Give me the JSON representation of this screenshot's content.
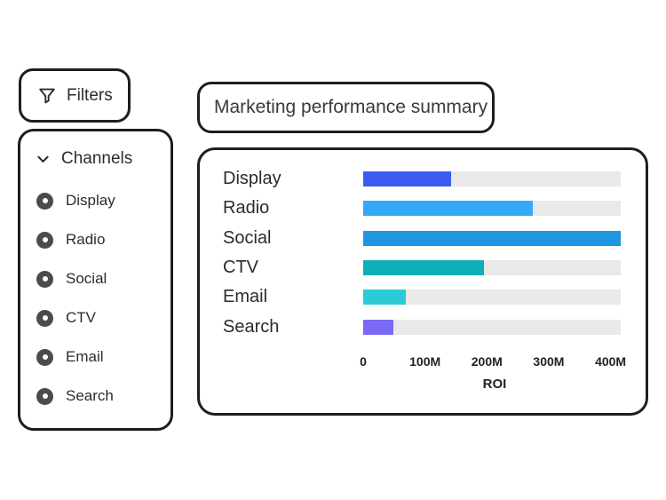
{
  "colors": {
    "border": "#1e1e1e",
    "card_bg": "#ffffff",
    "text_primary": "#2c2c2c",
    "title_text": "#3a3a3a",
    "track": "#e9e9e9",
    "radio_fill": "#4b4b4b"
  },
  "filters_button": {
    "label": "Filters"
  },
  "channels_panel": {
    "header": {
      "label": "Channels"
    },
    "items": [
      {
        "label": "Display"
      },
      {
        "label": "Radio"
      },
      {
        "label": "Social"
      },
      {
        "label": "CTV"
      },
      {
        "label": "Email"
      },
      {
        "label": "Search"
      }
    ]
  },
  "summary_card": {
    "title": "Marketing performance summary"
  },
  "chart_data": {
    "type": "bar",
    "orientation": "horizontal",
    "title": "Marketing performance summary",
    "categories": [
      "Display",
      "Radio",
      "Social",
      "CTV",
      "Email",
      "Search"
    ],
    "values": [
      145,
      280,
      425,
      200,
      70,
      50
    ],
    "value_unit": "M",
    "bar_colors": [
      "#3b5cf0",
      "#35a8f7",
      "#1e96e0",
      "#0fadb8",
      "#2acbd6",
      "#7a6af5"
    ],
    "track_color": "#e9e9e9",
    "xlabel": "ROI",
    "ylabel": "",
    "xlim": [
      0,
      425
    ],
    "ticks": [
      {
        "value": 0,
        "label": "0"
      },
      {
        "value": 100,
        "label": "100M"
      },
      {
        "value": 200,
        "label": "200M"
      },
      {
        "value": 300,
        "label": "300M"
      },
      {
        "value": 400,
        "label": "400M"
      }
    ],
    "grid": false,
    "legend": false
  }
}
